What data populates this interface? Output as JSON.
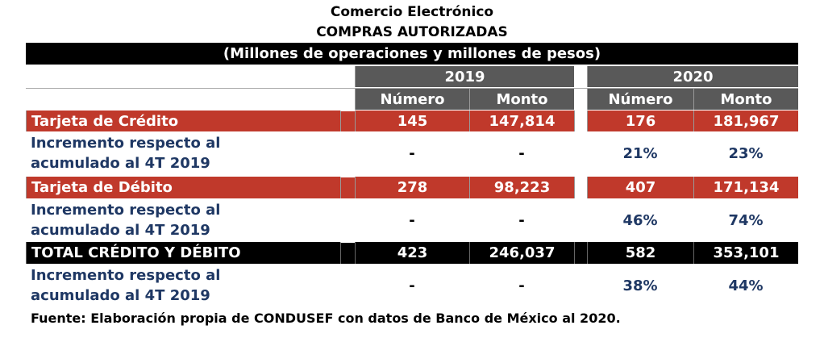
{
  "title": "Comercio Electrónico",
  "subtitle": "COMPRAS AUTORIZADAS",
  "units": "(Millones de operaciones y millones de pesos)",
  "years": [
    "2019",
    "2020"
  ],
  "col_headers": [
    "Número",
    "Monto",
    "Número",
    "Monto"
  ],
  "rows": [
    {
      "label": "Tarjeta de Crédito",
      "values": [
        "145",
        "147,814",
        "176",
        "181,967"
      ]
    },
    {
      "label_1": "Incremento  respecto al",
      "label_2": "acumulado al 4T 2019",
      "values": [
        "-",
        "-",
        "21%",
        "23%"
      ]
    },
    {
      "label": "Tarjeta de Débito",
      "values": [
        "278",
        "98,223",
        "407",
        "171,134"
      ]
    },
    {
      "label_1": "Incremento  respecto al",
      "label_2": "acumulado al 4T 2019",
      "values": [
        "-",
        "-",
        "46%",
        "74%"
      ]
    },
    {
      "label": "TOTAL CRÉDITO Y DÉBITO",
      "values": [
        "423",
        "246,037",
        "582",
        "353,101"
      ]
    },
    {
      "label_1": "Incremento  respecto al",
      "label_2": "acumulado al 4T 2019",
      "values": [
        "-",
        "-",
        "38%",
        "44%"
      ]
    }
  ],
  "source": "Fuente: Elaboración propia de CONDUSEF con datos de Banco de México al 2020.",
  "colors": {
    "red": "#c0392b",
    "gray": "#595959",
    "navy": "#1f3864"
  }
}
